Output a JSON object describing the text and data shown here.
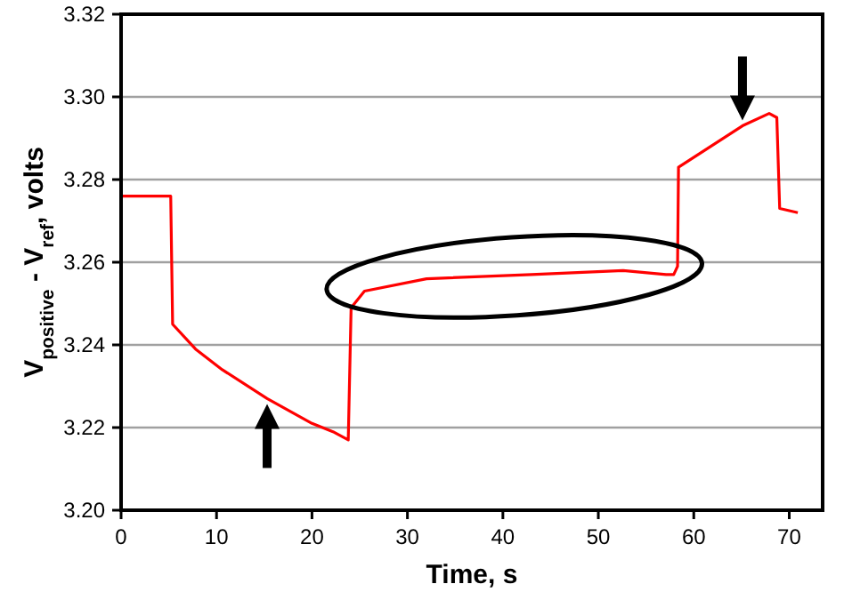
{
  "chart_data": {
    "type": "line",
    "xlabel": "Time, s",
    "ylabel": "V$_{positive}$ - V$_{ref}$, volts",
    "xlim": [
      0,
      73.5
    ],
    "xticks": [
      0,
      10,
      20,
      30,
      40,
      50,
      60,
      70
    ],
    "ylim": [
      3.2,
      3.32
    ],
    "yticks": [
      {
        "value": 3.2,
        "label": "3.20"
      },
      3.22,
      3.24,
      3.26,
      3.28,
      {
        "value": 3.3,
        "label": "3.30"
      },
      3.32
    ],
    "grid": "y",
    "marker": "none",
    "line_style": "solid",
    "series": [
      {
        "color": "#ff0000",
        "x": [
          0,
          5.2,
          5.4,
          7.8,
          10.6,
          15.3,
          20,
          22.2,
          23.8,
          24.1,
          25.5,
          32,
          43,
          52.6,
          57.1,
          57.9,
          58.3,
          58.4,
          65.1,
          67.9,
          68.7,
          69,
          70.9
        ],
        "values": [
          3.276,
          3.276,
          3.245,
          3.239,
          3.234,
          3.227,
          3.221,
          3.219,
          3.217,
          3.249,
          3.253,
          3.256,
          3.257,
          3.258,
          3.257,
          3.257,
          3.259,
          3.283,
          3.293,
          3.296,
          3.295,
          3.273,
          3.272
        ]
      }
    ]
  }
}
